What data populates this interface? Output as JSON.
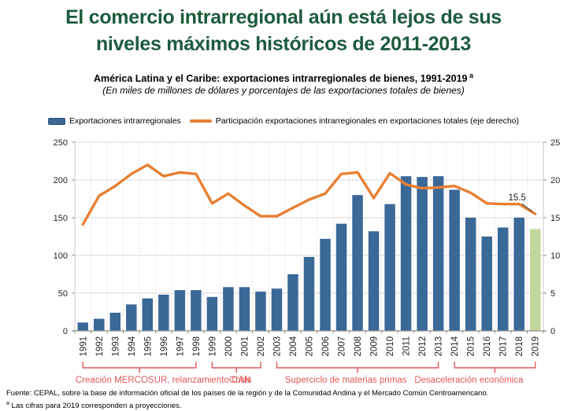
{
  "header": {
    "title_line1": "El comercio intrarregional aún está lejos de sus",
    "title_line2": "niveles máximos históricos de 2011-2013",
    "title_color": "#1D5B3C",
    "subtitle": "América Latina y el Caribe: exportaciones intrarregionales de bienes, 1991-2019",
    "subtitle_superscript": "a",
    "subtitle_note": "(En miles de millones de dólares y porcentajes de las exportaciones totales de bienes)"
  },
  "legend": {
    "bars_label": "Exportaciones intrarregionales",
    "line_label": "Participación exportaciones intrarregionales en exportaciones totales (eje derecho)"
  },
  "chart_data": {
    "type": "bar",
    "title": "América Latina y el Caribe: exportaciones intrarregionales de bienes, 1991-2019",
    "xlabel": "",
    "ylabel_left": "Miles de millones de dólares",
    "ylabel_right": "Porcentajes de las exportaciones totales de bienes",
    "grid": "on",
    "legend_position": "top",
    "categories": [
      "1991",
      "1992",
      "1993",
      "1994",
      "1995",
      "1996",
      "1997",
      "1998",
      "1999",
      "2000",
      "2001",
      "2002",
      "2003",
      "2004",
      "2005",
      "2006",
      "2007",
      "2008",
      "2009",
      "2010",
      "2011",
      "2012",
      "2013",
      "2014",
      "2015",
      "2016",
      "2017",
      "2018",
      "2019"
    ],
    "series": [
      {
        "name": "Exportaciones intrarregionales",
        "type": "bar",
        "axis": "left",
        "values": [
          11,
          16,
          24,
          35,
          43,
          48,
          54,
          54,
          45,
          58,
          58,
          52,
          56,
          75,
          98,
          122,
          142,
          180,
          132,
          168,
          205,
          204,
          205,
          187,
          150,
          125,
          137,
          150,
          135
        ]
      },
      {
        "name": "Participación exportaciones intrarregionales en exportaciones totales (eje derecho)",
        "type": "line",
        "axis": "right",
        "values": [
          14.1,
          17.9,
          19.2,
          20.8,
          22.0,
          20.5,
          21.0,
          20.8,
          16.9,
          18.2,
          16.6,
          15.2,
          15.2,
          16.3,
          17.4,
          18.2,
          20.8,
          21.0,
          17.6,
          20.9,
          19.4,
          18.9,
          19.0,
          19.2,
          18.3,
          16.9,
          16.8,
          16.8,
          15.5
        ]
      }
    ],
    "left_axis": {
      "min": 0,
      "max": 250,
      "step": 50,
      "ticks": [
        "0",
        "50",
        "100",
        "150",
        "200",
        "250"
      ]
    },
    "right_axis": {
      "min": 0,
      "max": 25,
      "step": 5,
      "ticks": [
        "0",
        "5",
        "10",
        "15",
        "20",
        "25"
      ]
    },
    "projection_year": "2019",
    "last_point_label": "15.5",
    "colors": {
      "bar": "#3A6897",
      "bar_border": "#2E5377",
      "bar_projection": "#C3D69B",
      "line": "#E87F33",
      "annotation": "#E25757",
      "grid": "#D9D9D9",
      "axis": "#8C8C8C",
      "axis_text": "#262626"
    }
  },
  "annotations": {
    "groups": [
      {
        "label": "Creación MERCOSUR, relanzamiento CAN",
        "from": "1991",
        "to": "1998"
      },
      {
        "label": "Crisis",
        "from": "1999",
        "to": "2002"
      },
      {
        "label": "Superciclo de materias primas",
        "from": "2003",
        "to": "2013"
      },
      {
        "label": "Desaceleración económica",
        "from": "2014",
        "to": "2019"
      }
    ]
  },
  "footer": {
    "source": "Fuente: CEPAL, sobre la base de información oficial de los países de la región y de la Comunidad Andina y el Mercado Común Centroamericano.",
    "note_mark": "a",
    "note": "Las cifras para 2019 corresponden a proyecciones."
  }
}
